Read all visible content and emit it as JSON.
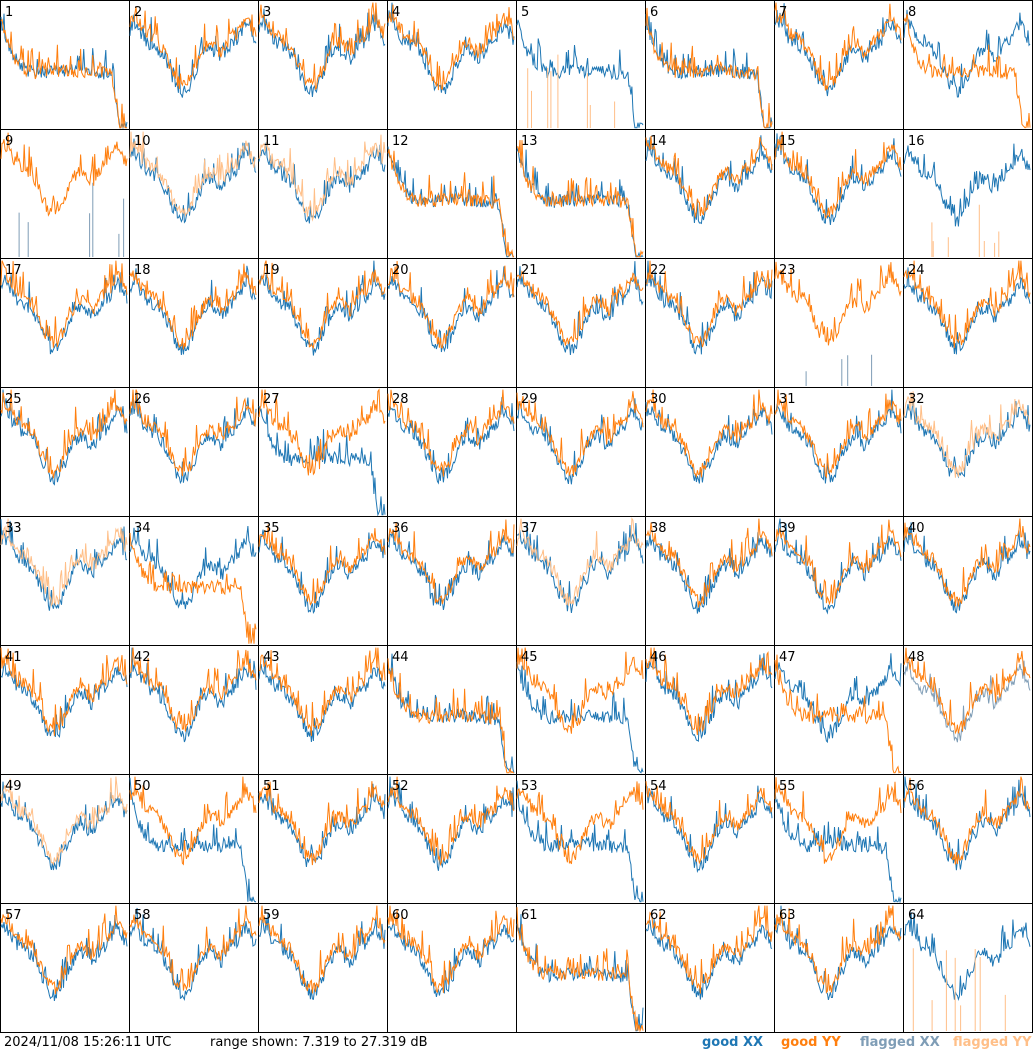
{
  "timestamp": "2024/11/08 15:26:11 UTC",
  "range_text": "range shown: 7.319 to 27.319 dB",
  "legend": {
    "good_xx": "good XX",
    "good_yy": "good YY",
    "flagged_xx": "flagged XX",
    "flagged_yy": "flagged YY"
  },
  "colors": {
    "good_xx": "#1f77b4",
    "good_yy": "#ff7f0e",
    "flagged_xx": "#7f9db6",
    "flagged_yy": "#ffbf88"
  },
  "chart_data": {
    "type": "line",
    "panels": 64,
    "grid": [
      8,
      8
    ],
    "ylim": [
      7.319,
      27.319
    ],
    "units": "dB",
    "panel_labels": [
      "1",
      "2",
      "3",
      "4",
      "5",
      "6",
      "7",
      "8",
      "9",
      "10",
      "11",
      "12",
      "13",
      "14",
      "15",
      "16",
      "17",
      "18",
      "19",
      "20",
      "21",
      "22",
      "23",
      "24",
      "25",
      "26",
      "27",
      "28",
      "29",
      "30",
      "31",
      "32",
      "33",
      "34",
      "35",
      "36",
      "37",
      "38",
      "39",
      "40",
      "41",
      "42",
      "43",
      "44",
      "45",
      "46",
      "47",
      "48",
      "49",
      "50",
      "51",
      "52",
      "53",
      "54",
      "55",
      "56",
      "57",
      "58",
      "59",
      "60",
      "61",
      "62",
      "63",
      "64"
    ],
    "series": [
      "good XX",
      "good YY",
      "flagged XX",
      "flagged YY"
    ],
    "panel_status": {
      "flagged_xx_panels": [
        9,
        23,
        48
      ],
      "flagged_yy_panels": [
        5,
        10,
        11,
        16,
        32,
        33,
        37,
        49,
        64
      ],
      "bad_xx_panels": [
        1,
        5,
        6,
        12,
        13,
        27,
        44,
        45,
        50,
        53,
        55,
        61
      ],
      "bad_yy_panels": [
        1,
        6,
        8,
        12,
        13,
        34,
        44,
        47,
        61
      ]
    }
  }
}
